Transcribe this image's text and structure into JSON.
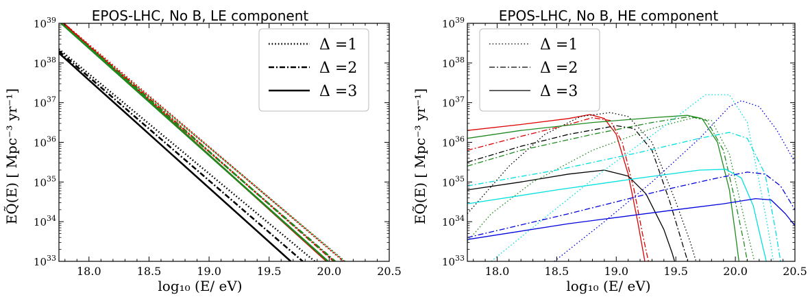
{
  "chart_data": [
    {
      "type": "line",
      "title": "EPOS-LHC, No B, LE component",
      "xlabel": "log₁₀ (E/ eV)",
      "ylabel": "EQ̃(E) [ Mpc⁻³ yr⁻¹]",
      "xlim": [
        17.75,
        20.5
      ],
      "ylim_log10": [
        33,
        39
      ],
      "xscale": "linear",
      "yscale": "log",
      "xticks": [
        "18.0",
        "18.5",
        "19.0",
        "19.5",
        "20.0",
        "20.5"
      ],
      "yticks": [
        "10^33",
        "10^34",
        "10^35",
        "10^36",
        "10^37",
        "10^38",
        "10^39"
      ],
      "grid": false,
      "legend_position": "top-right",
      "legend": [
        {
          "label": "Δ =1",
          "style": "dotted"
        },
        {
          "label": "Δ =2",
          "style": "dashdot"
        },
        {
          "label": "Δ =3",
          "style": "solid"
        }
      ],
      "series": [
        {
          "color": "#dd0000",
          "style": "dotted",
          "x": [
            17.75,
            20.12
          ],
          "log10_y": [
            39.1,
            33.0
          ]
        },
        {
          "color": "#dd0000",
          "style": "dashdot",
          "x": [
            17.75,
            20.04
          ],
          "log10_y": [
            39.1,
            33.0
          ]
        },
        {
          "color": "#dd0000",
          "style": "solid",
          "x": [
            17.75,
            19.98
          ],
          "log10_y": [
            39.1,
            33.0
          ]
        },
        {
          "color": "#1e8a1e",
          "style": "dotted",
          "x": [
            17.75,
            20.13
          ],
          "log10_y": [
            39.05,
            33.0
          ]
        },
        {
          "color": "#1e8a1e",
          "style": "dashdot",
          "x": [
            17.75,
            20.05
          ],
          "log10_y": [
            39.05,
            33.0
          ]
        },
        {
          "color": "#1e8a1e",
          "style": "solid",
          "x": [
            17.75,
            19.99
          ],
          "log10_y": [
            39.05,
            33.0
          ]
        },
        {
          "color": "#000000",
          "style": "dotted",
          "x": [
            17.75,
            19.88
          ],
          "log10_y": [
            38.35,
            33.0
          ]
        },
        {
          "color": "#000000",
          "style": "dashdot",
          "x": [
            17.75,
            19.78
          ],
          "log10_y": [
            38.3,
            33.0
          ]
        },
        {
          "color": "#000000",
          "style": "solid",
          "x": [
            17.75,
            19.68
          ],
          "log10_y": [
            38.25,
            33.0
          ]
        }
      ]
    },
    {
      "type": "line",
      "title": "EPOS-LHC, No B, HE component",
      "xlabel": "log₁₀ (E/ eV)",
      "ylabel": "EQ̃(E) [ Mpc⁻³ yr⁻¹]",
      "xlim": [
        17.75,
        20.5
      ],
      "ylim_log10": [
        33,
        39
      ],
      "xscale": "linear",
      "yscale": "log",
      "xticks": [
        "18.0",
        "18.5",
        "19.0",
        "19.5",
        "20.0",
        "20.5"
      ],
      "yticks": [
        "10^33",
        "10^34",
        "10^35",
        "10^36",
        "10^37",
        "10^38",
        "10^39"
      ],
      "grid": false,
      "legend_position": "top-left",
      "legend": [
        {
          "label": "Δ =1",
          "style": "dotted"
        },
        {
          "label": "Δ =2",
          "style": "dashdot"
        },
        {
          "label": "Δ =3",
          "style": "solid"
        }
      ],
      "series": [
        {
          "color": "#dd0000",
          "style": "solid",
          "x": [
            17.75,
            18.2,
            18.6,
            18.78,
            18.9,
            19.0,
            19.1,
            19.18,
            19.24
          ],
          "log10_y": [
            36.3,
            36.45,
            36.6,
            36.7,
            36.6,
            36.2,
            35.2,
            34.0,
            33.0
          ]
        },
        {
          "color": "#dd0000",
          "style": "dashdot",
          "x": [
            17.75,
            18.2,
            18.6,
            18.8,
            18.95,
            19.05,
            19.15,
            19.22,
            19.27
          ],
          "log10_y": [
            35.8,
            36.15,
            36.45,
            36.62,
            36.55,
            36.0,
            34.8,
            33.7,
            33.0
          ]
        },
        {
          "color": "#000000",
          "style": "dotted",
          "x": [
            17.75,
            18.1,
            18.4,
            18.7,
            18.95,
            19.1,
            19.3,
            19.5,
            19.62,
            19.67
          ],
          "log10_y": [
            34.2,
            35.4,
            36.2,
            36.65,
            36.75,
            36.65,
            36.0,
            34.5,
            33.5,
            33.0
          ]
        },
        {
          "color": "#000000",
          "style": "dashdot",
          "x": [
            17.75,
            18.2,
            18.6,
            19.0,
            19.15,
            19.3,
            19.45,
            19.56,
            19.6
          ],
          "log10_y": [
            35.5,
            35.9,
            36.2,
            36.42,
            36.35,
            35.8,
            34.5,
            33.4,
            33.0
          ]
        },
        {
          "color": "#000000",
          "style": "solid",
          "x": [
            17.75,
            18.2,
            18.6,
            18.9,
            19.1,
            19.25,
            19.4,
            19.47,
            19.49
          ],
          "log10_y": [
            34.8,
            35.0,
            35.2,
            35.3,
            35.15,
            34.7,
            33.8,
            33.2,
            33.0
          ]
        },
        {
          "color": "#1e8a1e",
          "style": "solid",
          "x": [
            17.75,
            18.2,
            18.8,
            19.3,
            19.6,
            19.72,
            19.85,
            19.95,
            20.0,
            20.03
          ],
          "log10_y": [
            36.1,
            36.3,
            36.5,
            36.62,
            36.68,
            36.6,
            36.0,
            34.8,
            33.7,
            33.0
          ]
        },
        {
          "color": "#1e8a1e",
          "style": "dashdot",
          "x": [
            17.75,
            18.2,
            18.8,
            19.3,
            19.62,
            19.76,
            19.9,
            20.0,
            20.07,
            20.1
          ],
          "log10_y": [
            35.4,
            35.8,
            36.2,
            36.5,
            36.65,
            36.55,
            35.8,
            34.5,
            33.5,
            33.0
          ]
        },
        {
          "color": "#1e8a1e",
          "style": "dotted",
          "x": [
            17.75,
            17.95,
            18.3,
            18.8,
            19.3,
            19.65,
            19.8,
            19.95,
            20.08,
            20.16
          ],
          "log10_y": [
            33.5,
            34.2,
            35.0,
            35.8,
            36.35,
            36.62,
            36.55,
            35.7,
            34.0,
            33.0
          ]
        },
        {
          "color": "#00e0e0",
          "style": "solid",
          "x": [
            17.75,
            18.5,
            19.2,
            19.7,
            19.92,
            20.05,
            20.15,
            20.22,
            20.26
          ],
          "log10_y": [
            34.45,
            34.8,
            35.1,
            35.3,
            35.32,
            35.1,
            34.4,
            33.5,
            33.0
          ]
        },
        {
          "color": "#00e0e0",
          "style": "dashdot",
          "x": [
            17.75,
            18.5,
            19.2,
            19.7,
            19.95,
            20.1,
            20.25,
            20.33,
            20.38
          ],
          "log10_y": [
            34.9,
            35.3,
            35.75,
            36.1,
            36.25,
            36.1,
            35.2,
            33.9,
            33.0
          ]
        },
        {
          "color": "#00e0e0",
          "style": "dotted",
          "x": [
            17.95,
            18.4,
            18.9,
            19.4,
            19.75,
            19.95,
            20.1,
            20.2,
            20.27,
            20.32
          ],
          "log10_y": [
            33.0,
            34.1,
            35.3,
            36.4,
            37.2,
            37.2,
            36.5,
            35.0,
            33.9,
            33.0
          ]
        },
        {
          "color": "#0000dd",
          "style": "solid",
          "x": [
            17.75,
            18.6,
            19.5,
            19.9,
            20.17,
            20.3,
            20.42,
            20.5
          ],
          "log10_y": [
            33.55,
            33.95,
            34.3,
            34.45,
            34.58,
            34.55,
            34.2,
            33.9
          ]
        },
        {
          "color": "#0000dd",
          "style": "dashdot",
          "x": [
            17.75,
            18.6,
            19.4,
            19.85,
            20.1,
            20.25,
            20.38,
            20.5
          ],
          "log10_y": [
            33.6,
            34.2,
            34.8,
            35.1,
            35.25,
            35.2,
            34.9,
            34.3
          ]
        },
        {
          "color": "#0000dd",
          "style": "dotted",
          "x": [
            18.48,
            18.9,
            19.3,
            19.7,
            19.95,
            20.05,
            20.2,
            20.35,
            20.5
          ],
          "log10_y": [
            33.0,
            34.0,
            35.0,
            36.1,
            36.9,
            37.05,
            36.9,
            36.3,
            35.5
          ]
        }
      ]
    }
  ]
}
